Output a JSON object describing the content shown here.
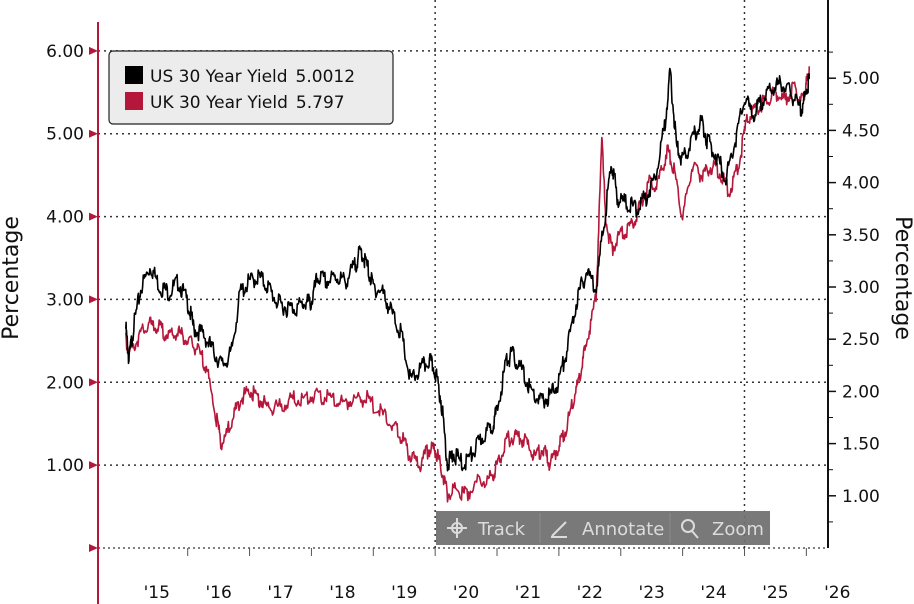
{
  "chart_data": {
    "type": "line",
    "x_ticks": [
      "'15",
      "'16",
      "'17",
      "'18",
      "'19",
      "'20",
      "'21",
      "'22",
      "'23",
      "'24",
      "'25",
      "'26"
    ],
    "left_axis": {
      "label": "Percentage",
      "ticks": [
        "1.00",
        "2.00",
        "3.00",
        "4.00",
        "5.00",
        "6.00"
      ],
      "range": [
        0,
        6.3
      ],
      "color": "#b5173a"
    },
    "right_axis": {
      "label": "Percentage",
      "ticks": [
        "1.00",
        "1.50",
        "2.00",
        "2.50",
        "3.00",
        "3.50",
        "4.00",
        "4.50",
        "5.00"
      ],
      "range": [
        0.5,
        5.5
      ]
    },
    "grid": true,
    "legend_position": "top-left",
    "series": [
      {
        "name": "US 30 Year Yield",
        "last_value": "5.0012",
        "axis": "right",
        "color": "#000000",
        "points": [
          [
            2015.0,
            2.6
          ],
          [
            2015.05,
            2.3
          ],
          [
            2015.12,
            2.6
          ],
          [
            2015.25,
            3.0
          ],
          [
            2015.4,
            3.2
          ],
          [
            2015.55,
            3.0
          ],
          [
            2015.7,
            2.95
          ],
          [
            2015.85,
            3.05
          ],
          [
            2016.0,
            2.85
          ],
          [
            2016.1,
            2.6
          ],
          [
            2016.25,
            2.55
          ],
          [
            2016.4,
            2.4
          ],
          [
            2016.55,
            2.25
          ],
          [
            2016.7,
            2.35
          ],
          [
            2016.85,
            2.95
          ],
          [
            2017.0,
            3.05
          ],
          [
            2017.15,
            3.1
          ],
          [
            2017.3,
            3.0
          ],
          [
            2017.45,
            2.85
          ],
          [
            2017.6,
            2.8
          ],
          [
            2017.75,
            2.8
          ],
          [
            2017.9,
            2.85
          ],
          [
            2018.0,
            2.85
          ],
          [
            2018.1,
            3.1
          ],
          [
            2018.25,
            3.05
          ],
          [
            2018.4,
            3.1
          ],
          [
            2018.55,
            3.05
          ],
          [
            2018.7,
            3.2
          ],
          [
            2018.8,
            3.35
          ],
          [
            2018.9,
            3.2
          ],
          [
            2019.0,
            3.0
          ],
          [
            2019.15,
            2.95
          ],
          [
            2019.3,
            2.75
          ],
          [
            2019.45,
            2.55
          ],
          [
            2019.6,
            2.1
          ],
          [
            2019.75,
            2.2
          ],
          [
            2019.9,
            2.3
          ],
          [
            2020.0,
            2.2
          ],
          [
            2020.1,
            1.9
          ],
          [
            2020.2,
            1.3
          ],
          [
            2020.3,
            1.4
          ],
          [
            2020.45,
            1.3
          ],
          [
            2020.6,
            1.4
          ],
          [
            2020.75,
            1.55
          ],
          [
            2020.9,
            1.65
          ],
          [
            2021.0,
            1.8
          ],
          [
            2021.15,
            2.3
          ],
          [
            2021.25,
            2.35
          ],
          [
            2021.4,
            2.2
          ],
          [
            2021.55,
            2.0
          ],
          [
            2021.7,
            1.9
          ],
          [
            2021.85,
            1.95
          ],
          [
            2022.0,
            2.1
          ],
          [
            2022.15,
            2.45
          ],
          [
            2022.3,
            2.9
          ],
          [
            2022.45,
            3.15
          ],
          [
            2022.6,
            3.0
          ],
          [
            2022.75,
            3.7
          ],
          [
            2022.85,
            4.2
          ],
          [
            2022.95,
            3.85
          ],
          [
            2023.1,
            3.8
          ],
          [
            2023.25,
            3.75
          ],
          [
            2023.4,
            3.85
          ],
          [
            2023.55,
            4.05
          ],
          [
            2023.7,
            4.5
          ],
          [
            2023.8,
            5.05
          ],
          [
            2023.9,
            4.35
          ],
          [
            2024.0,
            4.2
          ],
          [
            2024.15,
            4.4
          ],
          [
            2024.3,
            4.6
          ],
          [
            2024.4,
            4.4
          ],
          [
            2024.55,
            4.25
          ],
          [
            2024.7,
            4.05
          ],
          [
            2024.85,
            4.4
          ],
          [
            2025.0,
            4.8
          ],
          [
            2025.15,
            4.65
          ],
          [
            2025.3,
            4.8
          ],
          [
            2025.45,
            4.9
          ],
          [
            2025.6,
            4.95
          ],
          [
            2025.75,
            4.85
          ],
          [
            2025.9,
            4.7
          ],
          [
            2026.0,
            4.85
          ],
          [
            2026.05,
            5.0
          ]
        ]
      },
      {
        "name": "UK 30 Year Yield",
        "last_value": "5.797",
        "axis": "left",
        "color": "#b5173a",
        "points": [
          [
            2015.0,
            2.5
          ],
          [
            2015.1,
            2.4
          ],
          [
            2015.25,
            2.6
          ],
          [
            2015.4,
            2.7
          ],
          [
            2015.55,
            2.65
          ],
          [
            2015.7,
            2.55
          ],
          [
            2015.85,
            2.6
          ],
          [
            2016.0,
            2.5
          ],
          [
            2016.15,
            2.4
          ],
          [
            2016.3,
            2.2
          ],
          [
            2016.45,
            1.6
          ],
          [
            2016.55,
            1.25
          ],
          [
            2016.7,
            1.5
          ],
          [
            2016.85,
            1.8
          ],
          [
            2017.0,
            1.9
          ],
          [
            2017.15,
            1.8
          ],
          [
            2017.3,
            1.7
          ],
          [
            2017.5,
            1.7
          ],
          [
            2017.7,
            1.8
          ],
          [
            2017.9,
            1.8
          ],
          [
            2018.1,
            1.85
          ],
          [
            2018.3,
            1.8
          ],
          [
            2018.5,
            1.75
          ],
          [
            2018.7,
            1.8
          ],
          [
            2018.9,
            1.8
          ],
          [
            2019.1,
            1.65
          ],
          [
            2019.3,
            1.5
          ],
          [
            2019.45,
            1.35
          ],
          [
            2019.6,
            1.1
          ],
          [
            2019.75,
            1.0
          ],
          [
            2019.9,
            1.2
          ],
          [
            2020.0,
            1.2
          ],
          [
            2020.1,
            0.95
          ],
          [
            2020.2,
            0.65
          ],
          [
            2020.35,
            0.7
          ],
          [
            2020.5,
            0.65
          ],
          [
            2020.7,
            0.8
          ],
          [
            2020.9,
            0.85
          ],
          [
            2021.0,
            1.0
          ],
          [
            2021.15,
            1.3
          ],
          [
            2021.3,
            1.35
          ],
          [
            2021.45,
            1.3
          ],
          [
            2021.6,
            1.1
          ],
          [
            2021.75,
            1.2
          ],
          [
            2021.85,
            1.0
          ],
          [
            2022.0,
            1.25
          ],
          [
            2022.1,
            1.4
          ],
          [
            2022.25,
            1.85
          ],
          [
            2022.35,
            2.1
          ],
          [
            2022.45,
            2.5
          ],
          [
            2022.6,
            3.0
          ],
          [
            2022.7,
            5.0
          ],
          [
            2022.75,
            4.0
          ],
          [
            2022.85,
            3.6
          ],
          [
            2023.0,
            3.8
          ],
          [
            2023.15,
            3.85
          ],
          [
            2023.3,
            4.1
          ],
          [
            2023.45,
            4.4
          ],
          [
            2023.6,
            4.4
          ],
          [
            2023.75,
            4.8
          ],
          [
            2023.85,
            4.6
          ],
          [
            2024.0,
            4.0
          ],
          [
            2024.15,
            4.6
          ],
          [
            2024.3,
            4.5
          ],
          [
            2024.45,
            4.6
          ],
          [
            2024.6,
            4.55
          ],
          [
            2024.75,
            4.3
          ],
          [
            2024.9,
            4.6
          ],
          [
            2025.05,
            5.2
          ],
          [
            2025.2,
            5.3
          ],
          [
            2025.35,
            5.4
          ],
          [
            2025.5,
            5.5
          ],
          [
            2025.65,
            5.4
          ],
          [
            2025.8,
            5.55
          ],
          [
            2025.95,
            5.4
          ],
          [
            2026.0,
            5.6
          ],
          [
            2026.05,
            5.8
          ]
        ]
      }
    ]
  },
  "toolbar": {
    "track_label": "Track",
    "annotate_label": "Annotate",
    "zoom_label": "Zoom"
  }
}
